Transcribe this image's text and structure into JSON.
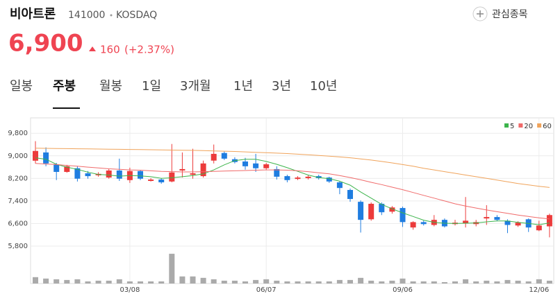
{
  "header": {
    "name": "비아트론",
    "code": "141000",
    "market": "KOSDAQ",
    "price": "6,900",
    "change": "160",
    "change_pct": "(+2.37%)",
    "favorite": "관심종목"
  },
  "tabs": {
    "items": [
      "일봉",
      "주봉",
      "월봉",
      "1일",
      "3개월",
      "1년",
      "3년",
      "10년"
    ],
    "selected": 1
  },
  "chart_data": {
    "type": "candlestick",
    "categories": [
      null,
      null,
      null,
      null,
      null,
      null,
      null,
      null,
      null,
      "03/08",
      null,
      null,
      null,
      null,
      null,
      null,
      null,
      null,
      null,
      null,
      null,
      null,
      "06/07",
      null,
      null,
      null,
      null,
      null,
      null,
      null,
      null,
      null,
      null,
      null,
      null,
      "09/06",
      null,
      null,
      null,
      null,
      null,
      null,
      null,
      null,
      null,
      null,
      null,
      null,
      "12/06",
      null
    ],
    "open": [
      8827,
      9120,
      8700,
      8430,
      8560,
      8380,
      8310,
      8230,
      8480,
      8140,
      8460,
      8110,
      8160,
      8090,
      8480,
      8330,
      8280,
      8830,
      9100,
      8880,
      8800,
      8730,
      8560,
      8530,
      8280,
      8180,
      8210,
      8280,
      8230,
      8060,
      7790,
      7370,
      6750,
      7300,
      7020,
      7150,
      6460,
      6650,
      6550,
      6730,
      6580,
      6600,
      6580,
      6780,
      6830,
      6700,
      6530,
      6750,
      6360,
      6500
    ],
    "high": [
      9519,
      9300,
      8750,
      8680,
      8630,
      8460,
      8420,
      8530,
      8900,
      8580,
      8500,
      8210,
      8210,
      9420,
      9120,
      9250,
      8830,
      9400,
      9150,
      8950,
      8930,
      9070,
      8750,
      8630,
      8330,
      8280,
      8310,
      8330,
      8260,
      8090,
      7840,
      7420,
      7350,
      7350,
      7220,
      7200,
      6680,
      6700,
      6900,
      6780,
      6730,
      7540,
      6730,
      7250,
      6900,
      6750,
      6680,
      6780,
      6700,
      6950
    ],
    "low": [
      8728,
      8630,
      8140,
      8400,
      8090,
      8190,
      8260,
      8190,
      8110,
      8040,
      8140,
      8090,
      8010,
      8060,
      8230,
      8190,
      8230,
      8730,
      8850,
      8730,
      8510,
      8430,
      8510,
      8160,
      8060,
      8140,
      8160,
      8160,
      8040,
      7640,
      7370,
      6280,
      6700,
      6900,
      6950,
      6480,
      6380,
      6530,
      6500,
      6460,
      6530,
      6460,
      6500,
      6550,
      6680,
      6260,
      6480,
      6300,
      6330,
      6110
    ],
    "close": [
      9173,
      8730,
      8430,
      8630,
      8190,
      8280,
      8360,
      8480,
      8190,
      8460,
      8190,
      8160,
      8060,
      8410,
      8530,
      8380,
      8730,
      9070,
      8900,
      8780,
      8630,
      8560,
      8700,
      8260,
      8140,
      8230,
      8260,
      8210,
      8090,
      7860,
      7470,
      6730,
      7300,
      7000,
      7170,
      6650,
      6650,
      6580,
      6730,
      6500,
      6630,
      6700,
      6650,
      6830,
      6730,
      6550,
      6630,
      6460,
      6530,
      6900
    ],
    "volume": [
      90000,
      70000,
      60000,
      50000,
      60000,
      30000,
      40000,
      40000,
      60000,
      30000,
      30000,
      30000,
      30000,
      420000,
      100000,
      100000,
      80000,
      60000,
      40000,
      40000,
      30000,
      50000,
      60000,
      40000,
      30000,
      30000,
      30000,
      30000,
      30000,
      50000,
      50000,
      80000,
      40000,
      30000,
      40000,
      70000,
      30000,
      30000,
      30000,
      20000,
      30000,
      60000,
      30000,
      40000,
      30000,
      50000,
      40000,
      30000,
      60000,
      40000
    ],
    "volume_ylim": [
      0,
      460000
    ],
    "up_color": "#ec3b3b",
    "down_color": "#1f7de0",
    "moving_averages": [
      {
        "name": "5",
        "color": "#3cb44b",
        "values": [
          8930,
          8880,
          8700,
          8600,
          8520,
          8420,
          8340,
          8320,
          8280,
          8300,
          8290,
          8260,
          8200,
          8220,
          8260,
          8300,
          8360,
          8500,
          8680,
          8830,
          8880,
          8880,
          8800,
          8700,
          8580,
          8450,
          8320,
          8230,
          8190,
          8100,
          7960,
          7720,
          7500,
          7280,
          7120,
          6980,
          6850,
          6720,
          6640,
          6610,
          6600,
          6610,
          6620,
          6660,
          6690,
          6690,
          6640,
          6600,
          6560,
          6620
        ]
      },
      {
        "name": "20",
        "color": "#f06a6a",
        "values": [
          8730,
          8710,
          8690,
          8660,
          8630,
          8600,
          8570,
          8540,
          8520,
          8500,
          8490,
          8470,
          8450,
          8440,
          8430,
          8430,
          8440,
          8450,
          8460,
          8470,
          8480,
          8490,
          8500,
          8500,
          8490,
          8470,
          8440,
          8400,
          8360,
          8300,
          8230,
          8150,
          8060,
          7980,
          7890,
          7800,
          7700,
          7600,
          7500,
          7400,
          7300,
          7220,
          7150,
          7080,
          7020,
          6960,
          6900,
          6850,
          6800,
          6760
        ]
      },
      {
        "name": "60",
        "color": "#f0a35a",
        "values": [
          9270,
          9265,
          9260,
          9255,
          9250,
          9245,
          9240,
          9235,
          9230,
          9225,
          9220,
          9215,
          9210,
          9205,
          9200,
          9195,
          9185,
          9175,
          9165,
          9155,
          9140,
          9125,
          9110,
          9095,
          9080,
          9060,
          9040,
          9015,
          8990,
          8960,
          8930,
          8890,
          8850,
          8800,
          8750,
          8690,
          8630,
          8560,
          8500,
          8440,
          8380,
          8320,
          8260,
          8200,
          8140,
          8080,
          8020,
          7970,
          7920,
          7880
        ]
      }
    ],
    "ylim": [
      5800,
      10150
    ],
    "yticks": [
      {
        "value": 5800,
        "label": "5,800"
      },
      {
        "value": 6600,
        "label": "6,600"
      },
      {
        "value": 7400,
        "label": "7,400"
      },
      {
        "value": 8200,
        "label": "8,200"
      },
      {
        "value": 9000,
        "label": "9,000"
      },
      {
        "value": 9800,
        "label": "9,800"
      }
    ],
    "grid": true
  }
}
